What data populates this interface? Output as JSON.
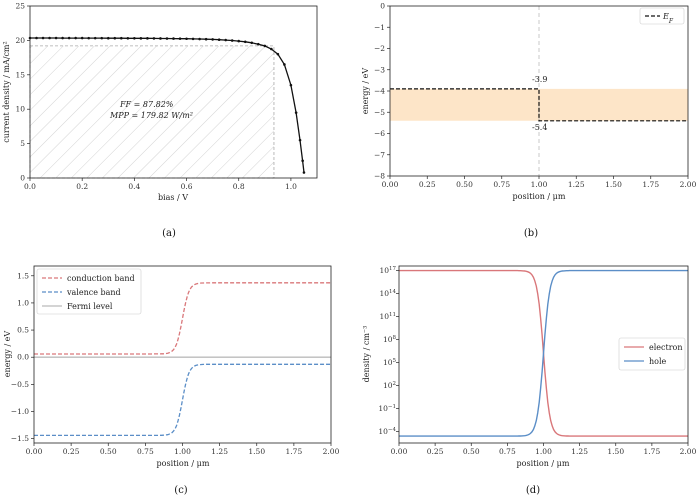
{
  "chart_data": [
    {
      "id": "a",
      "type": "line",
      "caption": "(a)",
      "xlabel": "bias / V",
      "ylabel": "current density / mA/cm²",
      "xlim": [
        0,
        1.1
      ],
      "ylim": [
        0,
        25
      ],
      "xticks": [
        "0.0",
        "0.2",
        "0.4",
        "0.6",
        "0.8",
        "1.0"
      ],
      "yticks": [
        "0",
        "5",
        "10",
        "15",
        "20",
        "25"
      ],
      "grid": false,
      "series": [
        {
          "x": [
            0.0,
            0.025,
            0.05,
            0.075,
            0.1,
            0.125,
            0.15,
            0.175,
            0.2,
            0.225,
            0.25,
            0.275,
            0.3,
            0.325,
            0.35,
            0.375,
            0.4,
            0.425,
            0.45,
            0.475,
            0.5,
            0.525,
            0.55,
            0.575,
            0.6,
            0.625,
            0.65,
            0.675,
            0.7,
            0.725,
            0.75,
            0.775,
            0.8,
            0.825,
            0.85,
            0.875,
            0.9,
            0.925,
            0.95,
            0.975,
            1.0,
            1.02,
            1.035,
            1.045,
            1.05
          ],
          "values": [
            20.35,
            20.35,
            20.35,
            20.35,
            20.35,
            20.34,
            20.34,
            20.34,
            20.34,
            20.33,
            20.33,
            20.33,
            20.32,
            20.32,
            20.32,
            20.31,
            20.31,
            20.3,
            20.3,
            20.29,
            20.28,
            20.27,
            20.26,
            20.25,
            20.24,
            20.22,
            20.2,
            20.17,
            20.14,
            20.1,
            20.05,
            19.98,
            19.9,
            19.8,
            19.65,
            19.45,
            19.2,
            18.75,
            18.0,
            16.5,
            13.5,
            9.5,
            5.5,
            2.5,
            0.8
          ]
        }
      ],
      "mpp_rect": {
        "x": [
          0,
          0.935
        ],
        "y": [
          0,
          19.2
        ]
      },
      "annotations": [
        "FF = 87.82%",
        "MPP = 179.82 W/m²"
      ]
    },
    {
      "id": "b",
      "type": "line",
      "caption": "(b)",
      "xlabel": "position / μm",
      "ylabel": "energy / eV",
      "xlim": [
        0,
        2.0
      ],
      "ylim": [
        -8,
        0
      ],
      "xticks": [
        "0.00",
        "0.25",
        "0.50",
        "0.75",
        "1.00",
        "1.25",
        "1.50",
        "1.75",
        "2.00"
      ],
      "yticks": [
        "0",
        "−1",
        "−2",
        "−3",
        "−4",
        "−5",
        "−6",
        "−7",
        "−8"
      ],
      "band": {
        "y": [
          -5.4,
          -3.9
        ],
        "color": "#fde5c8"
      },
      "legend": {
        "position": "top-right",
        "entries": [
          "E_F"
        ]
      },
      "series": [
        {
          "name": "E_F",
          "x": [
            0,
            1.0,
            1.0,
            2.0
          ],
          "values": [
            -3.9,
            -3.9,
            -5.4,
            -5.4
          ]
        }
      ],
      "vline": 1.0,
      "labels": [
        "-3.9",
        "-5.4"
      ]
    },
    {
      "id": "c",
      "type": "line",
      "caption": "(c)",
      "xlabel": "position / μm",
      "ylabel": "energy / eV",
      "xlim": [
        0,
        2.0
      ],
      "ylim": [
        -1.58,
        1.68
      ],
      "xticks": [
        "0.00",
        "0.25",
        "0.50",
        "0.75",
        "1.00",
        "1.25",
        "1.50",
        "1.75",
        "2.00"
      ],
      "yticks": [
        "1.5",
        "1.0",
        "0.5",
        "0.0",
        "−0.5",
        "−1.0",
        "−1.5"
      ],
      "legend": {
        "position": "top-left",
        "entries": [
          "conduction band",
          "valence band",
          "Fermi level"
        ]
      },
      "series": [
        {
          "name": "conduction band",
          "color": "#d9777a",
          "dash": true,
          "params": {
            "low": 0.06,
            "high": 1.37
          }
        },
        {
          "name": "valence band",
          "color": "#5b8ec7",
          "dash": true,
          "params": {
            "low": -1.44,
            "high": -0.13
          }
        },
        {
          "name": "Fermi level",
          "color": "#bbbbbb",
          "dash": false,
          "params": {
            "low": 0.0,
            "high": 0.0
          }
        }
      ]
    },
    {
      "id": "d",
      "type": "line",
      "caption": "(d)",
      "xlabel": "position / μm",
      "ylabel": "density / cm⁻³",
      "xlim": [
        0,
        2.0
      ],
      "ylim": [
        -5.5,
        17.6
      ],
      "ytick_exps": [
        "17",
        "14",
        "11",
        "8",
        "5",
        "2",
        "−1",
        "−4"
      ],
      "xticks": [
        "0.00",
        "0.25",
        "0.50",
        "0.75",
        "1.00",
        "1.25",
        "1.50",
        "1.75",
        "2.00"
      ],
      "legend": {
        "position": "center-right",
        "entries": [
          "electron",
          "hole"
        ]
      },
      "series": [
        {
          "name": "electron",
          "color": "#d9777a",
          "params": {
            "low": -4.6,
            "high": 17.0,
            "dir": "down"
          }
        },
        {
          "name": "hole",
          "color": "#5b8ec7",
          "params": {
            "low": -4.6,
            "high": 17.0,
            "dir": "up"
          }
        }
      ]
    }
  ]
}
